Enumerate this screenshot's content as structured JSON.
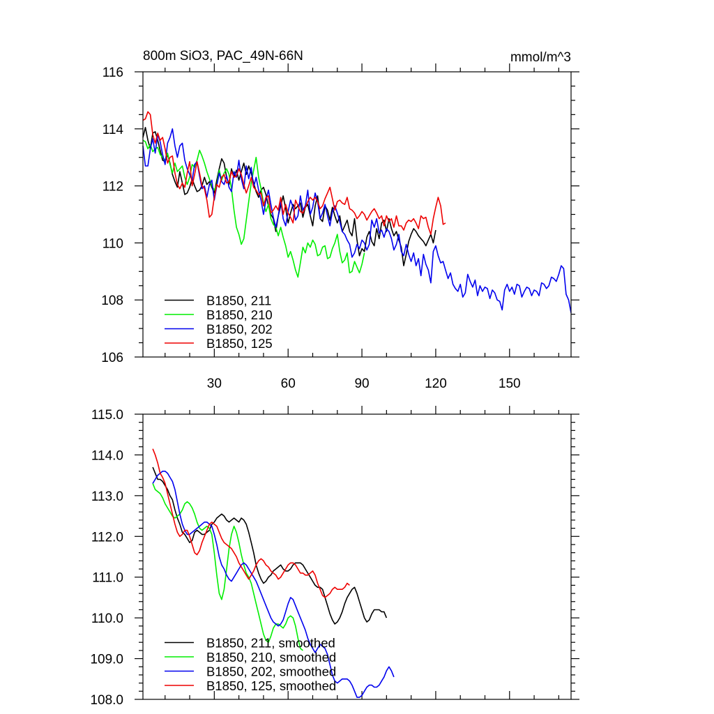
{
  "chart_data": [
    {
      "type": "line",
      "title": "800m SiO3, PAC_49N-66N",
      "units": "mmol/m^3",
      "xlabel": "",
      "ylabel": "",
      "xlim": [
        1,
        175
      ],
      "ylim": [
        106,
        116
      ],
      "xticks": [
        30,
        60,
        90,
        120,
        150
      ],
      "yticks": [
        106,
        108,
        110,
        112,
        114,
        116
      ],
      "ytick_labels": [
        "106",
        "108",
        "110",
        "112",
        "114",
        "116"
      ],
      "legend_position": "bottom-left",
      "series": [
        {
          "name": "B1850, 211",
          "color": "#000000",
          "x_start": 1,
          "values": [
            113.7,
            114.05,
            113.6,
            113.3,
            113.85,
            113.9,
            113.6,
            113.25,
            112.9,
            112.85,
            113.1,
            112.8,
            112.4,
            112.15,
            111.95,
            112.5,
            112.1,
            111.7,
            111.75,
            111.95,
            112.25,
            112.0,
            111.8,
            111.85,
            112.0,
            112.3,
            112.05,
            112.15,
            111.95,
            111.75,
            112.2,
            112.6,
            112.95,
            112.8,
            112.3,
            112.05,
            112.6,
            112.3,
            112.55,
            112.2,
            112.5,
            112.8,
            112.4,
            112.7,
            112.45,
            112.1,
            111.8,
            111.6,
            111.85,
            111.95,
            111.7,
            111.3,
            111.0,
            110.85,
            110.4,
            110.95,
            111.3,
            111.65,
            111.2,
            110.7,
            111.05,
            111.35,
            111.2,
            111.3,
            111.4,
            110.9,
            111.25,
            111.35,
            110.95,
            110.6,
            111.3,
            111.65,
            110.85,
            110.75,
            111.3,
            111.15,
            110.8,
            111.25,
            110.95,
            110.7,
            110.95,
            110.4,
            110.6,
            110.8,
            110.4,
            110.25,
            110.85,
            110.1,
            109.55,
            109.8,
            109.7,
            110.2,
            110.4,
            110.05,
            109.9,
            110.5,
            110.15,
            110.7,
            110.8,
            110.4,
            110.85,
            110.5,
            110.25,
            110.4,
            110.1,
            109.85,
            109.2,
            109.6,
            110.05,
            110.3,
            110.5,
            110.4,
            110.25,
            110.15,
            110.05,
            109.9,
            110.1,
            110.3,
            110.0,
            110.45
          ]
        },
        {
          "name": "B1850, 210",
          "color": "#00ee00",
          "x_start": 1,
          "values": [
            113.6,
            113.55,
            113.3,
            113.45,
            113.2,
            113.3,
            113.35,
            113.1,
            113.0,
            112.9,
            113.15,
            112.75,
            112.45,
            112.8,
            112.5,
            112.6,
            112.7,
            112.3,
            112.05,
            112.3,
            112.75,
            112.65,
            112.9,
            113.25,
            113.05,
            112.8,
            112.5,
            112.25,
            112.0,
            111.85,
            112.05,
            112.55,
            112.2,
            112.45,
            112.6,
            112.4,
            111.9,
            111.15,
            110.55,
            110.3,
            109.95,
            110.15,
            110.8,
            111.45,
            112.1,
            112.55,
            113.0,
            112.3,
            111.9,
            111.4,
            111.1,
            111.35,
            110.85,
            110.65,
            110.55,
            110.25,
            110.55,
            110.2,
            109.9,
            109.5,
            109.7,
            109.4,
            109.05,
            108.8,
            109.3,
            109.85,
            109.65,
            110.0,
            109.85,
            110.1,
            109.95,
            109.55,
            109.6,
            109.85,
            109.9,
            109.45,
            109.5,
            109.8,
            110.0,
            110.3,
            109.7,
            109.3,
            109.4,
            109.65,
            108.95,
            109.0,
            109.35,
            109.15,
            108.95,
            109.25,
            109.65
          ]
        },
        {
          "name": "B1850, 202",
          "color": "#0000ee",
          "x_start": 1,
          "values": [
            113.4,
            112.7,
            112.7,
            113.3,
            113.65,
            113.15,
            113.8,
            113.55,
            113.1,
            112.75,
            113.5,
            113.7,
            114.0,
            113.4,
            113.0,
            113.4,
            113.5,
            112.9,
            112.6,
            112.4,
            112.2,
            112.75,
            112.85,
            112.35,
            111.9,
            112.0,
            111.6,
            112.05,
            112.2,
            111.5,
            112.0,
            112.45,
            112.15,
            112.05,
            112.35,
            111.95,
            111.8,
            112.5,
            112.3,
            112.9,
            112.25,
            111.9,
            112.7,
            112.25,
            112.65,
            111.95,
            112.3,
            111.85,
            111.5,
            111.0,
            111.5,
            111.85,
            111.35,
            110.9,
            110.55,
            110.95,
            111.5,
            110.85,
            110.6,
            111.1,
            111.5,
            111.25,
            110.8,
            110.95,
            111.65,
            111.15,
            111.3,
            111.85,
            111.0,
            111.25,
            111.75,
            111.45,
            110.85,
            111.05,
            111.35,
            110.95,
            110.6,
            111.1,
            111.3,
            111.05,
            110.75,
            110.4,
            110.3,
            110.1,
            109.95,
            109.5,
            109.65,
            109.95,
            109.8,
            110.1,
            110.0,
            109.75,
            109.95,
            110.8,
            110.55,
            110.85,
            110.35,
            110.45,
            110.2,
            110.5,
            110.4,
            110.15,
            109.75,
            109.95,
            110.3,
            109.7,
            109.55,
            109.95,
            109.6,
            109.35,
            109.65,
            109.2,
            109.45,
            108.85,
            109.6,
            109.25,
            109.05,
            108.6,
            109.7,
            109.9,
            109.55,
            109.3,
            109.35,
            109.05,
            108.75,
            108.95,
            108.55,
            108.4,
            108.3,
            108.55,
            108.1,
            108.25,
            108.9,
            108.65,
            108.45,
            108.7,
            108.15,
            108.5,
            108.3,
            108.45,
            108.4,
            108.05,
            108.35,
            108.25,
            108.0,
            107.95,
            107.65,
            108.35,
            108.55,
            108.3,
            108.45,
            108.2,
            108.55,
            108.5,
            108.1,
            108.3,
            108.45,
            108.4,
            108.15,
            108.35,
            108.3,
            108.15,
            108.6,
            108.55,
            108.4,
            108.5,
            108.8,
            108.75,
            108.65,
            108.9,
            109.2,
            109.1,
            108.2,
            108.0,
            107.55
          ]
        },
        {
          "name": "B1850, 125",
          "color": "#ee0000",
          "x_start": 1,
          "values": [
            114.3,
            114.35,
            114.6,
            114.5,
            113.8,
            113.5,
            113.85,
            113.6,
            113.7,
            113.3,
            112.8,
            113.0,
            113.05,
            112.45,
            112.05,
            111.9,
            112.1,
            111.95,
            112.45,
            112.85,
            112.0,
            112.4,
            112.85,
            112.45,
            112.0,
            111.9,
            111.5,
            110.9,
            111.0,
            111.6,
            112.05,
            111.95,
            112.3,
            112.4,
            112.1,
            112.15,
            112.5,
            112.3,
            112.35,
            112.6,
            112.4,
            112.05,
            111.75,
            112.0,
            112.3,
            111.95,
            111.85,
            111.7,
            111.75,
            111.3,
            111.6,
            111.65,
            111.05,
            111.15,
            111.3,
            111.15,
            111.6,
            111.0,
            111.35,
            111.05,
            110.9,
            110.7,
            111.5,
            111.3,
            111.1,
            111.05,
            111.25,
            111.45,
            111.6,
            111.5,
            111.6,
            111.45,
            111.2,
            111.3,
            111.55,
            111.75,
            111.95,
            111.55,
            111.15,
            111.45,
            111.5,
            111.4,
            111.35,
            111.6,
            111.2,
            111.15,
            111.05,
            110.85,
            110.95,
            111.1,
            111.0,
            110.8,
            110.95,
            111.1,
            111.2,
            111.05,
            110.85,
            110.95,
            110.6,
            110.95,
            110.75,
            110.85,
            110.55,
            110.95,
            110.6,
            110.6,
            110.45,
            110.7,
            110.8,
            110.75,
            110.85,
            110.7,
            110.5,
            110.95,
            110.85,
            110.9,
            110.55,
            110.3,
            110.85,
            111.25,
            111.6,
            111.3,
            110.65,
            110.7
          ]
        }
      ]
    },
    {
      "type": "line",
      "title": "",
      "xlabel": "",
      "ylabel": "",
      "xlim": [
        1,
        175
      ],
      "ylim": [
        108,
        115
      ],
      "xticks": [
        30,
        60,
        90,
        120,
        150
      ],
      "yticks": [
        108,
        109,
        110,
        111,
        112,
        113,
        114,
        115
      ],
      "ytick_labels": [
        "108.0",
        "109.0",
        "110.0",
        "111.0",
        "112.0",
        "113.0",
        "114.0",
        "115.0"
      ],
      "legend_position": "bottom-left",
      "series": [
        {
          "name": "B1850, 211, smoothed",
          "color": "#000000",
          "x_start": 5,
          "values": [
            113.7,
            113.55,
            113.4,
            113.4,
            113.35,
            113.25,
            113.15,
            113.0,
            112.9,
            112.65,
            112.45,
            112.3,
            112.1,
            112.05,
            111.95,
            111.85,
            111.9,
            112.1,
            112.15,
            112.1,
            112.05,
            112.05,
            112.1,
            112.15,
            112.3,
            112.35,
            112.45,
            112.5,
            112.55,
            112.5,
            112.4,
            112.35,
            112.4,
            112.45,
            112.4,
            112.35,
            112.45,
            112.4,
            112.3,
            112.1,
            111.85,
            111.6,
            111.3,
            111.1,
            110.95,
            110.85,
            110.9,
            111.0,
            111.05,
            111.15,
            111.2,
            111.25,
            111.3,
            111.2,
            111.15,
            111.15,
            111.2,
            111.3,
            111.35,
            111.35,
            111.35,
            111.3,
            111.2,
            111.1,
            111.0,
            110.9,
            110.8,
            110.75,
            110.75,
            110.7,
            110.5,
            110.3,
            110.1,
            109.95,
            109.85,
            109.9,
            110.0,
            110.15,
            110.35,
            110.5,
            110.6,
            110.7,
            110.75,
            110.6,
            110.4,
            110.2,
            110.0,
            109.9,
            109.95,
            110.1,
            110.2,
            110.2,
            110.2,
            110.15,
            110.15,
            110.0
          ]
        },
        {
          "name": "B1850, 210, smoothed",
          "color": "#00ee00",
          "x_start": 5,
          "values": [
            113.3,
            113.15,
            113.1,
            113.05,
            112.95,
            112.8,
            112.7,
            112.6,
            112.5,
            112.45,
            112.5,
            112.55,
            112.65,
            112.8,
            112.85,
            112.8,
            112.7,
            112.55,
            112.35,
            112.2,
            112.15,
            112.2,
            112.25,
            112.2,
            112.05,
            111.6,
            111.05,
            110.6,
            110.45,
            110.7,
            111.2,
            111.7,
            112.05,
            112.25,
            112.1,
            111.85,
            111.55,
            111.3,
            111.1,
            111.0,
            110.85,
            110.6,
            110.35,
            110.1,
            109.85,
            109.6,
            109.45,
            109.4,
            109.55,
            109.75,
            109.85,
            109.85,
            109.8,
            109.75,
            109.85,
            110.0,
            110.05,
            110.0,
            109.8,
            109.5,
            109.25,
            109.2
          ]
        },
        {
          "name": "B1850, 202, smoothed",
          "color": "#0000ee",
          "x_start": 5,
          "values": [
            113.3,
            113.4,
            113.5,
            113.55,
            113.6,
            113.6,
            113.55,
            113.45,
            113.35,
            113.15,
            112.85,
            112.55,
            112.3,
            112.15,
            112.05,
            112.05,
            112.1,
            112.15,
            112.2,
            112.25,
            112.3,
            112.35,
            112.35,
            112.3,
            112.25,
            112.05,
            111.8,
            111.5,
            111.3,
            111.2,
            111.05,
            110.95,
            110.9,
            111.0,
            111.1,
            111.2,
            111.3,
            111.35,
            111.3,
            111.2,
            111.1,
            111.0,
            110.9,
            110.75,
            110.6,
            110.45,
            110.3,
            110.15,
            110.0,
            109.9,
            109.85,
            109.8,
            109.85,
            109.95,
            110.15,
            110.35,
            110.5,
            110.45,
            110.3,
            110.15,
            110.0,
            109.85,
            109.7,
            109.5,
            109.35,
            109.25,
            109.15,
            109.25,
            109.35,
            109.3,
            109.25,
            109.1,
            108.85,
            108.6,
            108.45,
            108.4,
            108.45,
            108.5,
            108.5,
            108.5,
            108.45,
            108.35,
            108.2,
            108.05,
            108.05,
            108.1,
            108.2,
            108.3,
            108.35,
            108.35,
            108.3,
            108.3,
            108.35,
            108.45,
            108.55,
            108.7,
            108.8,
            108.7,
            108.55
          ]
        },
        {
          "name": "B1850, 125, smoothed",
          "color": "#ee0000",
          "x_start": 5,
          "values": [
            114.15,
            114.0,
            113.8,
            113.55,
            113.45,
            113.3,
            113.05,
            112.8,
            112.55,
            112.3,
            112.1,
            112.0,
            112.05,
            112.15,
            112.15,
            112.0,
            111.8,
            111.6,
            111.55,
            111.65,
            111.85,
            112.0,
            112.15,
            112.3,
            112.35,
            112.3,
            112.25,
            112.1,
            111.95,
            111.85,
            111.8,
            111.75,
            111.7,
            111.6,
            111.5,
            111.35,
            111.25,
            111.15,
            111.05,
            110.95,
            111.05,
            111.15,
            111.3,
            111.4,
            111.45,
            111.4,
            111.3,
            111.25,
            111.15,
            111.1,
            111.05,
            110.95,
            111.0,
            111.1,
            111.2,
            111.3,
            111.35,
            111.35,
            111.3,
            111.2,
            111.1,
            111.1,
            111.05,
            111.05,
            111.1,
            111.15,
            111.05,
            110.85,
            110.7,
            110.55,
            110.5,
            110.55,
            110.6,
            110.7,
            110.75,
            110.7,
            110.7,
            110.7,
            110.75,
            110.85,
            110.8
          ]
        }
      ]
    }
  ]
}
